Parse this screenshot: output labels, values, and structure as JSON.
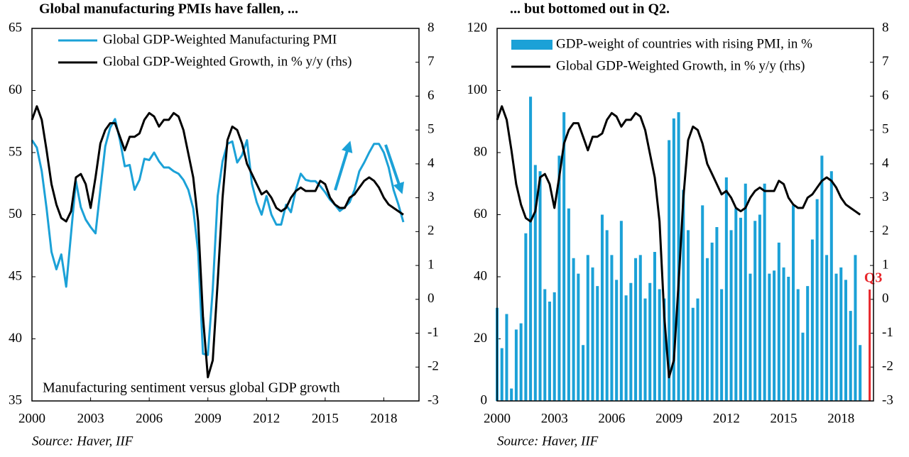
{
  "chart_data": [
    {
      "type": "line",
      "title": "Global manufacturing PMIs have fallen, ...",
      "annotation": "Manufacturing sentiment versus global GDP growth",
      "source": "Source: Haver, IIF",
      "x": [
        2000,
        2000.25,
        2000.5,
        2000.75,
        2001,
        2001.25,
        2001.5,
        2001.75,
        2002,
        2002.25,
        2002.5,
        2002.75,
        2003,
        2003.25,
        2003.5,
        2003.75,
        2004,
        2004.25,
        2004.5,
        2004.75,
        2005,
        2005.25,
        2005.5,
        2005.75,
        2006,
        2006.25,
        2006.5,
        2006.75,
        2007,
        2007.25,
        2007.5,
        2007.75,
        2008,
        2008.25,
        2008.5,
        2008.75,
        2009,
        2009.25,
        2009.5,
        2009.75,
        2010,
        2010.25,
        2010.5,
        2010.75,
        2011,
        2011.25,
        2011.5,
        2011.75,
        2012,
        2012.25,
        2012.5,
        2012.75,
        2013,
        2013.25,
        2013.5,
        2013.75,
        2014,
        2014.25,
        2014.5,
        2014.75,
        2015,
        2015.25,
        2015.5,
        2015.75,
        2016,
        2016.25,
        2016.5,
        2016.75,
        2017,
        2017.25,
        2017.5,
        2017.75,
        2018,
        2018.25,
        2018.5,
        2018.75,
        2019
      ],
      "series": [
        {
          "name": "Global GDP-Weighted Manufacturing PMI",
          "color": "#1ba1d7",
          "type": "line",
          "values": [
            56.0,
            55.4,
            53.5,
            50.5,
            47.0,
            45.6,
            46.8,
            44.2,
            48.5,
            52.7,
            50.6,
            49.6,
            49.0,
            48.5,
            52.0,
            55.5,
            57.0,
            57.7,
            56.0,
            53.9,
            54.0,
            52.0,
            52.8,
            54.5,
            54.4,
            55.0,
            54.3,
            53.8,
            53.8,
            53.5,
            53.3,
            52.8,
            52.0,
            50.5,
            47.0,
            38.8,
            38.7,
            44.0,
            51.5,
            54.3,
            55.7,
            55.9,
            54.2,
            54.8,
            56.0,
            52.5,
            51.0,
            50.0,
            51.5,
            50.0,
            49.2,
            49.2,
            50.8,
            50.2,
            52.0,
            53.3,
            52.8,
            52.7,
            52.7,
            52.3,
            51.8,
            51.2,
            50.8,
            50.3,
            50.6,
            51.0,
            52.0,
            53.5,
            54.2,
            55.0,
            55.7,
            55.7,
            55.0,
            53.8,
            52.0,
            50.8,
            49.4
          ]
        },
        {
          "name": "Global GDP-Weighted Growth, in % y/y (rhs)",
          "color": "#000000",
          "type": "line",
          "axis": "y2",
          "values": [
            5.3,
            5.7,
            5.3,
            4.4,
            3.4,
            2.8,
            2.4,
            2.3,
            2.6,
            3.6,
            3.7,
            3.4,
            2.7,
            3.6,
            4.6,
            5.0,
            5.2,
            5.2,
            4.8,
            4.4,
            4.8,
            4.8,
            4.9,
            5.3,
            5.5,
            5.4,
            5.1,
            5.3,
            5.3,
            5.5,
            5.4,
            5.0,
            4.3,
            3.6,
            2.3,
            -0.5,
            -2.3,
            -1.8,
            0.5,
            3.0,
            4.7,
            5.1,
            5.0,
            4.6,
            4.0,
            3.7,
            3.4,
            3.1,
            3.2,
            3.0,
            2.7,
            2.6,
            2.7,
            3.0,
            3.2,
            3.3,
            3.2,
            3.2,
            3.2,
            3.5,
            3.4,
            3.0,
            2.8,
            2.7,
            2.7,
            3.0,
            3.1,
            3.3,
            3.5,
            3.6,
            3.5,
            3.3,
            3.0,
            2.8,
            2.7,
            2.6,
            2.5
          ]
        }
      ],
      "xlim": [
        2000,
        2019.8
      ],
      "xticks": [
        2000,
        2003,
        2006,
        2009,
        2012,
        2015,
        2018
      ],
      "ylim": [
        35,
        65
      ],
      "yticks": [
        35,
        40,
        45,
        50,
        55,
        60,
        65
      ],
      "y2lim": [
        -3,
        8
      ],
      "y2ticks": [
        -3,
        -2,
        -1,
        0,
        1,
        2,
        3,
        4,
        5,
        6,
        7,
        8
      ]
    },
    {
      "type": "bar",
      "title": "... but bottomed out in Q2.",
      "annotation": "Q3",
      "source": "Source: Haver, IIF",
      "x": [
        2000,
        2000.25,
        2000.5,
        2000.75,
        2001,
        2001.25,
        2001.5,
        2001.75,
        2002,
        2002.25,
        2002.5,
        2002.75,
        2003,
        2003.25,
        2003.5,
        2003.75,
        2004,
        2004.25,
        2004.5,
        2004.75,
        2005,
        2005.25,
        2005.5,
        2005.75,
        2006,
        2006.25,
        2006.5,
        2006.75,
        2007,
        2007.25,
        2007.5,
        2007.75,
        2008,
        2008.25,
        2008.5,
        2008.75,
        2009,
        2009.25,
        2009.5,
        2009.75,
        2010,
        2010.25,
        2010.5,
        2010.75,
        2011,
        2011.25,
        2011.5,
        2011.75,
        2012,
        2012.25,
        2012.5,
        2012.75,
        2013,
        2013.25,
        2013.5,
        2013.75,
        2014,
        2014.25,
        2014.5,
        2014.75,
        2015,
        2015.25,
        2015.5,
        2015.75,
        2016,
        2016.25,
        2016.5,
        2016.75,
        2017,
        2017.25,
        2017.5,
        2017.75,
        2018,
        2018.25,
        2018.5,
        2018.75,
        2019
      ],
      "series": [
        {
          "name": "GDP-weight of countries with rising PMI, in %",
          "color": "#1ba1d7",
          "type": "bar",
          "values": [
            30,
            17,
            28,
            4,
            23,
            25,
            54,
            98,
            76,
            74,
            36,
            32,
            35,
            79,
            93,
            62,
            46,
            41,
            18,
            47,
            43,
            37,
            60,
            55,
            47,
            39,
            58,
            34,
            38,
            46,
            47,
            33,
            38,
            48,
            36,
            33,
            84,
            91,
            93,
            68,
            55,
            30,
            33,
            63,
            46,
            51,
            56,
            36,
            72,
            55,
            62,
            59,
            70,
            41,
            58,
            60,
            70,
            41,
            42,
            51,
            43,
            40,
            63,
            36,
            22,
            37,
            52,
            65,
            79,
            47,
            74,
            41,
            43,
            39,
            29,
            47,
            18
          ]
        },
        {
          "name": "Global GDP-Weighted Growth, in % y/y (rhs)",
          "color": "#000000",
          "type": "line",
          "axis": "y2",
          "values": [
            5.3,
            5.7,
            5.3,
            4.4,
            3.4,
            2.8,
            2.4,
            2.3,
            2.6,
            3.6,
            3.7,
            3.4,
            2.7,
            3.6,
            4.6,
            5.0,
            5.2,
            5.2,
            4.8,
            4.4,
            4.8,
            4.8,
            4.9,
            5.3,
            5.5,
            5.4,
            5.1,
            5.3,
            5.3,
            5.5,
            5.4,
            5.0,
            4.3,
            3.6,
            2.3,
            -0.5,
            -2.3,
            -1.8,
            0.5,
            3.0,
            4.7,
            5.1,
            5.0,
            4.6,
            4.0,
            3.7,
            3.4,
            3.1,
            3.2,
            3.0,
            2.7,
            2.6,
            2.7,
            3.0,
            3.2,
            3.3,
            3.2,
            3.2,
            3.2,
            3.5,
            3.4,
            3.0,
            2.8,
            2.7,
            2.7,
            3.0,
            3.1,
            3.3,
            3.5,
            3.6,
            3.5,
            3.3,
            3.0,
            2.8,
            2.7,
            2.6,
            2.5
          ]
        }
      ],
      "annotation_color": "#e8262b",
      "xlim": [
        2000,
        2019.7
      ],
      "xticks": [
        2000,
        2003,
        2006,
        2009,
        2012,
        2015,
        2018
      ],
      "ylim": [
        0,
        120
      ],
      "yticks": [
        0,
        20,
        40,
        60,
        80,
        100,
        120
      ],
      "y2lim": [
        -3,
        8
      ],
      "y2ticks": [
        -3,
        -2,
        -1,
        0,
        1,
        2,
        3,
        4,
        5,
        6,
        7,
        8
      ]
    }
  ]
}
